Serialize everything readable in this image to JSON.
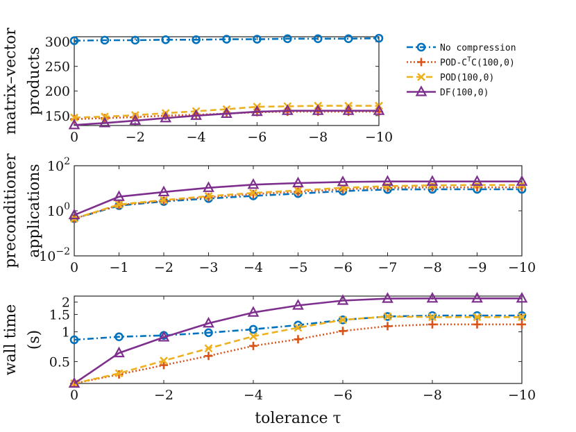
{
  "colors": {
    "no_compression": "#0072BD",
    "pod_ctc": "#D95319",
    "pod": "#EDB120",
    "df": "#7E2F8E"
  },
  "legend": {
    "placement": "top-right",
    "entries": [
      {
        "key": "no_compression",
        "label": "No compression",
        "sup": ""
      },
      {
        "key": "pod_ctc",
        "label": "POD-C",
        "sup": "T",
        "label_rest": "C(100,0)"
      },
      {
        "key": "pod",
        "label": "POD(100,0)",
        "sup": ""
      },
      {
        "key": "df",
        "label": "DF(100,0)",
        "sup": ""
      }
    ]
  },
  "chart_data": [
    {
      "type": "line",
      "ylabel": [
        "matrix–vector",
        "products"
      ],
      "xlabel": "",
      "xlim": [
        0,
        -10
      ],
      "ylim": [
        130,
        310
      ],
      "yscale": "linear",
      "xticks": [
        0,
        -2,
        -4,
        -6,
        -8,
        -10
      ],
      "xtick_labels": [
        "0",
        "−2",
        "−4",
        "−6",
        "−8",
        "−10"
      ],
      "yticks": [
        150,
        200,
        250,
        300
      ],
      "ytick_labels": [
        "150",
        "200",
        "250",
        "300"
      ],
      "x": [
        0,
        -1,
        -2,
        -3,
        -4,
        -5,
        -6,
        -7,
        -8,
        -9,
        -10
      ],
      "series": [
        {
          "key": "no_compression",
          "marker": "circle",
          "dash": "dashdot",
          "values": [
            302,
            303,
            303,
            304,
            304,
            305,
            305,
            306,
            306,
            306,
            307
          ]
        },
        {
          "key": "pod_ctc",
          "marker": "plus",
          "dash": "dotted",
          "values": [
            143,
            145,
            147,
            150,
            152,
            154,
            157,
            158,
            158,
            158,
            158
          ]
        },
        {
          "key": "pod",
          "marker": "x",
          "dash": "dashed",
          "values": [
            146,
            148,
            151,
            155,
            159,
            163,
            168,
            169,
            170,
            170,
            170
          ]
        },
        {
          "key": "df",
          "marker": "triangle",
          "dash": "solid",
          "values": [
            131,
            135,
            140,
            145,
            150,
            154,
            158,
            160,
            160,
            160,
            160
          ]
        }
      ]
    },
    {
      "type": "line",
      "ylabel": [
        "preconditioner",
        "applications"
      ],
      "xlabel": "",
      "xlim": [
        0,
        -10
      ],
      "ylim": [
        0.01,
        100
      ],
      "yscale": "log",
      "xticks": [
        0,
        -1,
        -2,
        -3,
        -4,
        -5,
        -6,
        -7,
        -8,
        -9,
        -10
      ],
      "xtick_labels": [
        "0",
        "−1",
        "−2",
        "−3",
        "−4",
        "−5",
        "−6",
        "−7",
        "−8",
        "−9",
        "−10"
      ],
      "yticks": [
        0.01,
        1,
        100
      ],
      "ytick_labels": [
        {
          "base": "10",
          "exp": "−2"
        },
        {
          "base": "10",
          "exp": "0"
        },
        {
          "base": "10",
          "exp": "2"
        }
      ],
      "x": [
        0,
        -1,
        -2,
        -3,
        -4,
        -5,
        -6,
        -7,
        -8,
        -9,
        -10
      ],
      "series": [
        {
          "key": "no_compression",
          "marker": "circle",
          "dash": "dashdot",
          "values": [
            0.45,
            1.7,
            2.6,
            3.5,
            4.6,
            5.8,
            7.5,
            8.8,
            9.0,
            9.0,
            9.0
          ]
        },
        {
          "key": "pod_ctc",
          "marker": "plus",
          "dash": "dotted",
          "values": [
            0.45,
            1.8,
            2.8,
            4.0,
            5.5,
            7.0,
            9.0,
            10.5,
            11.0,
            11.0,
            11.0
          ]
        },
        {
          "key": "pod",
          "marker": "x",
          "dash": "dashed",
          "values": [
            0.45,
            1.9,
            3.0,
            4.5,
            6.2,
            8.0,
            10.5,
            12.5,
            13.5,
            14.0,
            14.0
          ]
        },
        {
          "key": "df",
          "marker": "triangle",
          "dash": "solid",
          "values": [
            0.65,
            4.2,
            6.8,
            10.5,
            14.5,
            17.0,
            19.0,
            20.0,
            20.0,
            20.0,
            20.0
          ]
        }
      ]
    },
    {
      "type": "line",
      "ylabel": [
        "wall time",
        "(s)"
      ],
      "xlabel": "tolerance τ",
      "xlim": [
        0,
        -10
      ],
      "ylim": [
        0.3,
        2.3
      ],
      "yscale": "log",
      "xticks": [
        0,
        -2,
        -4,
        -6,
        -8,
        -10
      ],
      "xtick_labels": [
        "0",
        "−2",
        "−4",
        "−6",
        "−8",
        "−10"
      ],
      "yticks": [
        0.5,
        1,
        1.5,
        2
      ],
      "ytick_labels": [
        "0.5",
        "1",
        "1.5",
        "2"
      ],
      "x": [
        0,
        -1,
        -2,
        -3,
        -4,
        -5,
        -6,
        -7,
        -8,
        -9,
        -10
      ],
      "series": [
        {
          "key": "no_compression",
          "marker": "circle",
          "dash": "dashdot",
          "values": [
            0.83,
            0.89,
            0.92,
            0.98,
            1.06,
            1.17,
            1.32,
            1.43,
            1.46,
            1.46,
            1.46
          ]
        },
        {
          "key": "pod_ctc",
          "marker": "plus",
          "dash": "dotted",
          "values": [
            0.3,
            0.37,
            0.46,
            0.57,
            0.72,
            0.84,
            1.02,
            1.14,
            1.19,
            1.19,
            1.19
          ]
        },
        {
          "key": "pod",
          "marker": "x",
          "dash": "dashed",
          "values": [
            0.3,
            0.38,
            0.51,
            0.68,
            0.9,
            1.1,
            1.32,
            1.43,
            1.41,
            1.41,
            1.41
          ]
        },
        {
          "key": "df",
          "marker": "triangle",
          "dash": "solid",
          "values": [
            0.3,
            0.61,
            0.88,
            1.22,
            1.57,
            1.85,
            2.07,
            2.17,
            2.18,
            2.18,
            2.18
          ]
        }
      ]
    }
  ]
}
